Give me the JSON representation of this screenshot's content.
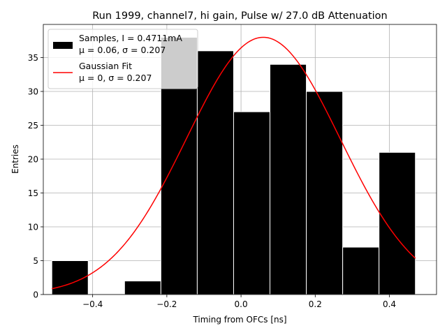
{
  "chart_data": {
    "type": "bar",
    "title": "Run 1999, channel7, hi gain, Pulse w/ 27.0 dB Attenuation",
    "xlabel": "Timing from OFCs [ns]",
    "ylabel": "Entries",
    "xlim": [
      -0.533,
      0.527
    ],
    "ylim": [
      0,
      39.9
    ],
    "xticks": [
      -0.4,
      -0.2,
      0.0,
      0.2,
      0.4
    ],
    "xtick_labels": [
      "−0.4",
      "−0.2",
      "0.0",
      "0.2",
      "0.4"
    ],
    "yticks": [
      0,
      5,
      10,
      15,
      20,
      25,
      30,
      35
    ],
    "ytick_labels": [
      "0",
      "5",
      "10",
      "15",
      "20",
      "25",
      "30",
      "35"
    ],
    "grid": true,
    "legend_position": "top-left",
    "bins": [
      {
        "x0": -0.51,
        "x1": -0.412,
        "count": 5
      },
      {
        "x0": -0.412,
        "x1": -0.314,
        "count": 0
      },
      {
        "x0": -0.314,
        "x1": -0.216,
        "count": 2
      },
      {
        "x0": -0.216,
        "x1": -0.118,
        "count": 38
      },
      {
        "x0": -0.118,
        "x1": -0.02,
        "count": 36
      },
      {
        "x0": -0.02,
        "x1": 0.078,
        "count": 27
      },
      {
        "x0": 0.078,
        "x1": 0.176,
        "count": 34
      },
      {
        "x0": 0.176,
        "x1": 0.274,
        "count": 30
      },
      {
        "x0": 0.274,
        "x1": 0.372,
        "count": 7
      },
      {
        "x0": 0.372,
        "x1": 0.47,
        "count": 21
      }
    ],
    "series": [
      {
        "name": "Samples, I = 0.4711mA",
        "name_line2": "μ = 0.06, σ = 0.207",
        "kind": "histogram",
        "color": "#000000",
        "edge_color": "#ffffff"
      },
      {
        "name": "Gaussian Fit",
        "name_line2": "μ = 0, σ = 0.207",
        "kind": "line",
        "color": "#ff0000",
        "amplitude": 38,
        "mean": 0.06,
        "sigma": 0.207,
        "x_range": [
          -0.51,
          0.47
        ]
      }
    ]
  }
}
